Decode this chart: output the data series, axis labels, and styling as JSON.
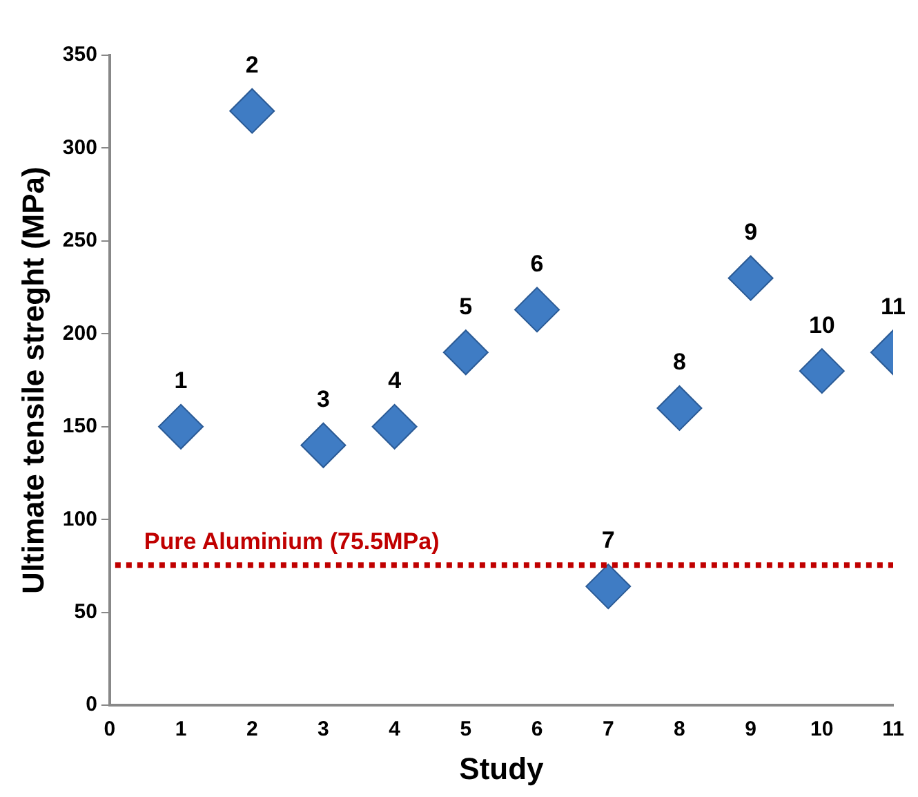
{
  "chart_data": {
    "type": "scatter",
    "xlabel": "Study",
    "ylabel": "Ultimate tensile streght (MPa)",
    "x": [
      1,
      2,
      3,
      4,
      5,
      6,
      7,
      8,
      9,
      10,
      11
    ],
    "series": [
      {
        "color": "#3f7cc4",
        "values": [
          150,
          320,
          140,
          150,
          190,
          213,
          64,
          160,
          230,
          180,
          190
        ]
      }
    ],
    "annotations": [
      {
        "text": "1",
        "x": 1,
        "y": 150
      },
      {
        "text": "2",
        "x": 2,
        "y": 320
      },
      {
        "text": "3",
        "x": 3,
        "y": 140
      },
      {
        "text": "4",
        "x": 4,
        "y": 150
      },
      {
        "text": "5",
        "x": 5,
        "y": 190
      },
      {
        "text": "6",
        "x": 6,
        "y": 213
      },
      {
        "text": "7",
        "x": 7,
        "y": 64
      },
      {
        "text": "8",
        "x": 8,
        "y": 160
      },
      {
        "text": "9",
        "x": 9,
        "y": 230
      },
      {
        "text": "10",
        "x": 10,
        "y": 180
      },
      {
        "text": "11",
        "x": 11,
        "y": 190
      }
    ],
    "marker": "diamond",
    "grid": false,
    "legend": false,
    "xlim": [
      0,
      11
    ],
    "xticks": [
      0,
      1,
      2,
      3,
      4,
      5,
      6,
      7,
      8,
      9,
      10,
      11
    ],
    "ylim": [
      0,
      350
    ],
    "yticks": [
      0,
      50,
      100,
      150,
      200,
      250,
      300,
      350
    ],
    "ref_lines": [
      {
        "axis": "y",
        "value": 75.5,
        "label": "Pure Aluminium (75.5MPa)",
        "color": "#c00000",
        "line_style": "dotted"
      }
    ]
  }
}
